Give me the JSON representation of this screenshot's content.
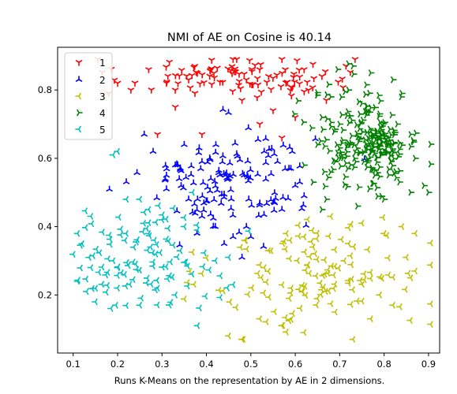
{
  "chart_data": {
    "type": "scatter",
    "title": "NMI of AE on Cosine is 40.14",
    "xlabel": "Runs K-Means on the representation by AE in 2 dimensions.",
    "ylabel": "",
    "xlim": [
      0.065,
      0.925
    ],
    "ylim": [
      0.03,
      0.925
    ],
    "xticks": [
      "0.1",
      "0.2",
      "0.3",
      "0.4",
      "0.5",
      "0.6",
      "0.7",
      "0.8",
      "0.9"
    ],
    "xtick_values": [
      0.1,
      0.2,
      0.3,
      0.4,
      0.5,
      0.6,
      0.7,
      0.8,
      0.9
    ],
    "yticks": [
      "0.2",
      "0.4",
      "0.6",
      "0.8"
    ],
    "ytick_values": [
      0.2,
      0.4,
      0.6,
      0.8
    ],
    "grid": false,
    "legend_position": "top-left",
    "series": [
      {
        "name": "1",
        "color": "#ff0000",
        "marker": "tri_down",
        "clusters": [
          {
            "cx": 0.47,
            "cy": 0.84,
            "sx": 0.13,
            "sy": 0.032,
            "n": 95
          }
        ],
        "points": [
          [
            0.18,
            0.79
          ],
          [
            0.23,
            0.8
          ],
          [
            0.27,
            0.86
          ],
          [
            0.2,
            0.82
          ],
          [
            0.31,
            0.82
          ],
          [
            0.36,
            0.83
          ],
          [
            0.41,
            0.86
          ],
          [
            0.46,
            0.89
          ],
          [
            0.52,
            0.86
          ],
          [
            0.57,
            0.89
          ],
          [
            0.62,
            0.86
          ],
          [
            0.66,
            0.84
          ],
          [
            0.33,
            0.75
          ],
          [
            0.39,
            0.67
          ],
          [
            0.48,
            0.77
          ],
          [
            0.55,
            0.74
          ],
          [
            0.6,
            0.72
          ],
          [
            0.52,
            0.7
          ],
          [
            0.29,
            0.67
          ],
          [
            0.57,
            0.66
          ],
          [
            0.63,
            0.8
          ],
          [
            0.67,
            0.77
          ],
          [
            0.49,
            0.83
          ],
          [
            0.54,
            0.84
          ]
        ]
      },
      {
        "name": "2",
        "color": "#0000ff",
        "marker": "tri_up",
        "clusters": [
          {
            "cx": 0.45,
            "cy": 0.54,
            "sx": 0.095,
            "sy": 0.075,
            "n": 125
          }
        ],
        "points": [
          [
            0.26,
            0.67
          ],
          [
            0.28,
            0.62
          ],
          [
            0.33,
            0.58
          ],
          [
            0.35,
            0.64
          ],
          [
            0.31,
            0.55
          ],
          [
            0.39,
            0.59
          ],
          [
            0.53,
            0.62
          ],
          [
            0.6,
            0.52
          ],
          [
            0.62,
            0.49
          ],
          [
            0.57,
            0.45
          ],
          [
            0.49,
            0.4
          ],
          [
            0.5,
            0.37
          ],
          [
            0.46,
            0.37
          ],
          [
            0.44,
            0.35
          ],
          [
            0.48,
            0.31
          ],
          [
            0.36,
            0.48
          ],
          [
            0.39,
            0.43
          ],
          [
            0.42,
            0.4
          ],
          [
            0.61,
            0.53
          ],
          [
            0.56,
            0.59
          ],
          [
            0.59,
            0.57
          ],
          [
            0.41,
            0.54
          ],
          [
            0.38,
            0.48
          ],
          [
            0.31,
            0.51
          ]
        ]
      },
      {
        "name": "3",
        "color": "#bfbf00",
        "marker": "tri_left",
        "clusters": [
          {
            "cx": 0.66,
            "cy": 0.26,
            "sx": 0.12,
            "sy": 0.085,
            "n": 125
          }
        ],
        "points": [
          [
            0.45,
            0.08
          ],
          [
            0.48,
            0.07
          ],
          [
            0.52,
            0.13
          ],
          [
            0.57,
            0.11
          ],
          [
            0.62,
            0.09
          ],
          [
            0.53,
            0.28
          ],
          [
            0.54,
            0.33
          ],
          [
            0.62,
            0.37
          ],
          [
            0.68,
            0.43
          ],
          [
            0.75,
            0.41
          ],
          [
            0.8,
            0.38
          ],
          [
            0.84,
            0.4
          ],
          [
            0.87,
            0.38
          ],
          [
            0.86,
            0.25
          ],
          [
            0.87,
            0.27
          ],
          [
            0.79,
            0.2
          ],
          [
            0.73,
            0.07
          ],
          [
            0.69,
            0.15
          ],
          [
            0.77,
            0.13
          ],
          [
            0.82,
            0.17
          ],
          [
            0.58,
            0.38
          ],
          [
            0.64,
            0.34
          ],
          [
            0.71,
            0.3
          ],
          [
            0.85,
            0.31
          ]
        ]
      },
      {
        "name": "4",
        "color": "#008000",
        "marker": "tri_right",
        "clusters": [
          {
            "cx": 0.76,
            "cy": 0.65,
            "sx": 0.06,
            "sy": 0.075,
            "n": 185
          },
          {
            "cx": 0.79,
            "cy": 0.64,
            "sx": 0.025,
            "sy": 0.025,
            "n": 45
          }
        ],
        "points": [
          [
            0.73,
            0.87
          ],
          [
            0.77,
            0.85
          ],
          [
            0.82,
            0.83
          ],
          [
            0.84,
            0.79
          ],
          [
            0.72,
            0.8
          ],
          [
            0.68,
            0.78
          ],
          [
            0.66,
            0.72
          ],
          [
            0.69,
            0.59
          ],
          [
            0.64,
            0.53
          ],
          [
            0.62,
            0.58
          ],
          [
            0.67,
            0.48
          ],
          [
            0.66,
            0.45
          ],
          [
            0.74,
            0.46
          ],
          [
            0.8,
            0.48
          ],
          [
            0.86,
            0.5
          ],
          [
            0.9,
            0.5
          ],
          [
            0.89,
            0.52
          ],
          [
            0.87,
            0.6
          ],
          [
            0.86,
            0.67
          ],
          [
            0.83,
            0.7
          ],
          [
            0.79,
            0.73
          ],
          [
            0.75,
            0.76
          ],
          [
            0.7,
            0.7
          ],
          [
            0.65,
            0.64
          ]
        ]
      },
      {
        "name": "5",
        "color": "#00bfbf",
        "marker": "tri_left",
        "clusters": [
          {
            "cx": 0.25,
            "cy": 0.31,
            "sx": 0.085,
            "sy": 0.075,
            "n": 110
          }
        ],
        "points": [
          [
            0.11,
            0.38
          ],
          [
            0.12,
            0.35
          ],
          [
            0.11,
            0.24
          ],
          [
            0.13,
            0.21
          ],
          [
            0.15,
            0.18
          ],
          [
            0.19,
            0.3
          ],
          [
            0.2,
            0.28
          ],
          [
            0.2,
            0.22
          ],
          [
            0.19,
            0.61
          ],
          [
            0.2,
            0.62
          ],
          [
            0.22,
            0.48
          ],
          [
            0.25,
            0.48
          ],
          [
            0.27,
            0.45
          ],
          [
            0.3,
            0.42
          ],
          [
            0.35,
            0.4
          ],
          [
            0.38,
            0.39
          ],
          [
            0.42,
            0.3
          ],
          [
            0.45,
            0.31
          ],
          [
            0.46,
            0.23
          ],
          [
            0.38,
            0.11
          ],
          [
            0.33,
            0.2
          ],
          [
            0.29,
            0.22
          ],
          [
            0.25,
            0.17
          ],
          [
            0.14,
            0.28
          ]
        ]
      }
    ]
  }
}
